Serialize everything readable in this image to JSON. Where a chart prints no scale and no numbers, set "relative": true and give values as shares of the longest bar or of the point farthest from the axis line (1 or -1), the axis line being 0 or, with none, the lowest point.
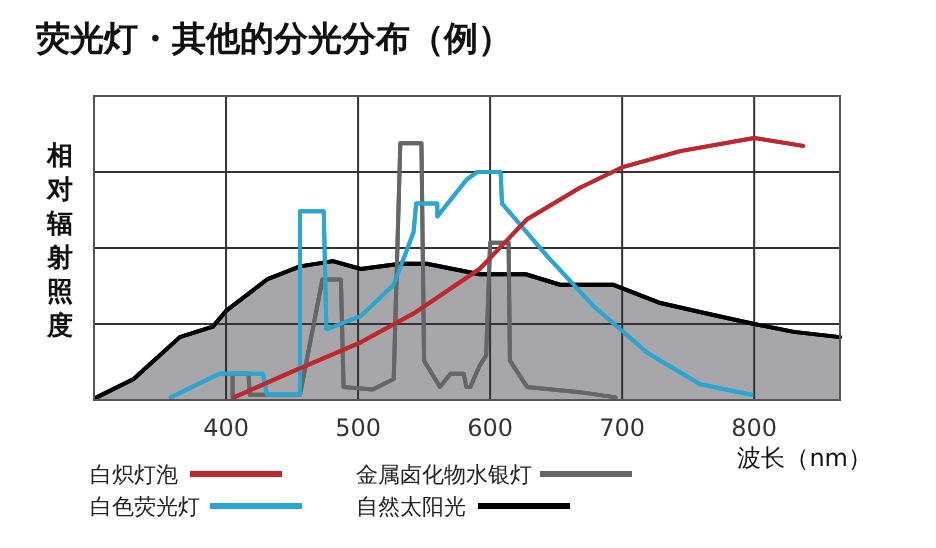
{
  "chart_data": {
    "type": "line",
    "title": "荧光灯・其他的分光分布（例）",
    "xlabel": "波长（nm）",
    "ylabel": "相对辐射照度",
    "relative": true,
    "xlim": [
      300,
      865
    ],
    "xticks": [
      400,
      500,
      600,
      700,
      800
    ],
    "grid": true,
    "legend": "bottom",
    "series": [
      {
        "name": "白炽灯泡",
        "color": "#c0272d",
        "x": [
          406,
          451,
          502,
          542,
          592,
          628,
          668,
          701,
          744,
          800,
          837
        ],
        "values": [
          0.01,
          0.11,
          0.22,
          0.33,
          0.5,
          0.69,
          0.81,
          0.89,
          0.95,
          1,
          0.97
        ]
      },
      {
        "name": "白色荧光灯",
        "color": "#2aa7d0",
        "x": [
          358,
          395,
          428,
          431,
          456,
          456,
          474,
          476,
          502,
          527,
          542,
          544,
          560,
          560,
          582,
          590,
          608,
          609,
          643,
          678,
          719,
          759,
          798
        ],
        "values": [
          0.01,
          0.1,
          0.1,
          0.02,
          0.02,
          0.72,
          0.72,
          0.27,
          0.32,
          0.44,
          0.64,
          0.75,
          0.75,
          0.7,
          0.84,
          0.87,
          0.87,
          0.75,
          0.55,
          0.36,
          0.18,
          0.06,
          0.02
        ]
      },
      {
        "name": "金属卤化物水银灯",
        "color": "#666666",
        "x": [
          405,
          405,
          417,
          418,
          456,
          473,
          487,
          489,
          511,
          527,
          532,
          548,
          550,
          562,
          570,
          580,
          582,
          585,
          592,
          597,
          600,
          614,
          615,
          628,
          668,
          695
        ],
        "values": [
          0.01,
          0.1,
          0.1,
          0.02,
          0.02,
          0.46,
          0.46,
          0.05,
          0.04,
          0.08,
          0.98,
          0.98,
          0.15,
          0.05,
          0.1,
          0.1,
          0.05,
          0.05,
          0.13,
          0.17,
          0.6,
          0.6,
          0.15,
          0.05,
          0.03,
          0.01
        ]
      },
      {
        "name": "自然太阳光",
        "type": "area",
        "color": "#000000",
        "x": [
          302,
          330,
          365,
          390,
          400,
          431,
          456,
          481,
          502,
          532,
          552,
          592,
          603,
          627,
          653,
          693,
          729,
          764,
          800,
          830,
          865
        ],
        "values": [
          0.01,
          0.08,
          0.24,
          0.28,
          0.34,
          0.46,
          0.51,
          0.53,
          0.5,
          0.52,
          0.52,
          0.48,
          0.48,
          0.48,
          0.44,
          0.44,
          0.37,
          0.33,
          0.29,
          0.26,
          0.24
        ]
      }
    ]
  }
}
